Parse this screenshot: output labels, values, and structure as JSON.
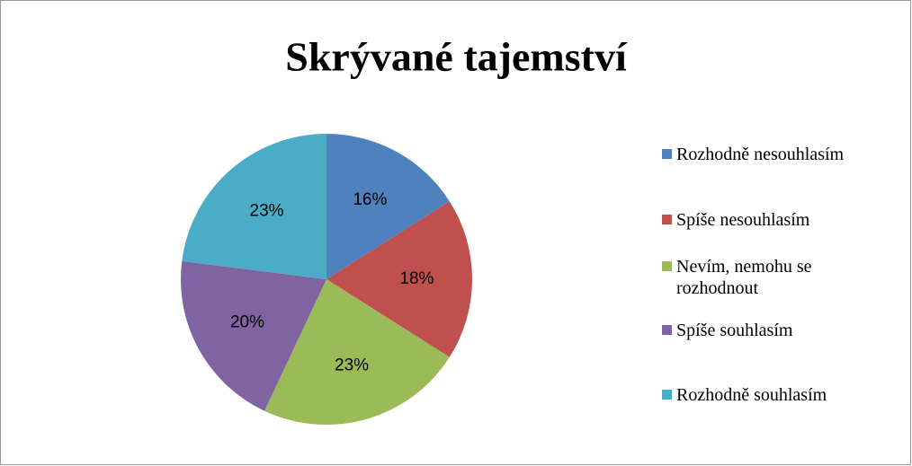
{
  "chart_data": {
    "type": "pie",
    "title": "Skrývané tajemství",
    "categories": [
      "Rozhodně nesouhlasím",
      "Spíše nesouhlasím",
      "Nevím, nemohu se rozhodnout",
      "Spíše souhlasím",
      "Rozhodně souhlasím"
    ],
    "values": [
      16,
      18,
      23,
      20,
      23
    ],
    "value_labels": [
      "16%",
      "18%",
      "23%",
      "20%",
      "23%"
    ],
    "colors": [
      "#4f81bd",
      "#c0504d",
      "#9bbb59",
      "#8064a2",
      "#4bacc6"
    ],
    "legend": "right"
  }
}
